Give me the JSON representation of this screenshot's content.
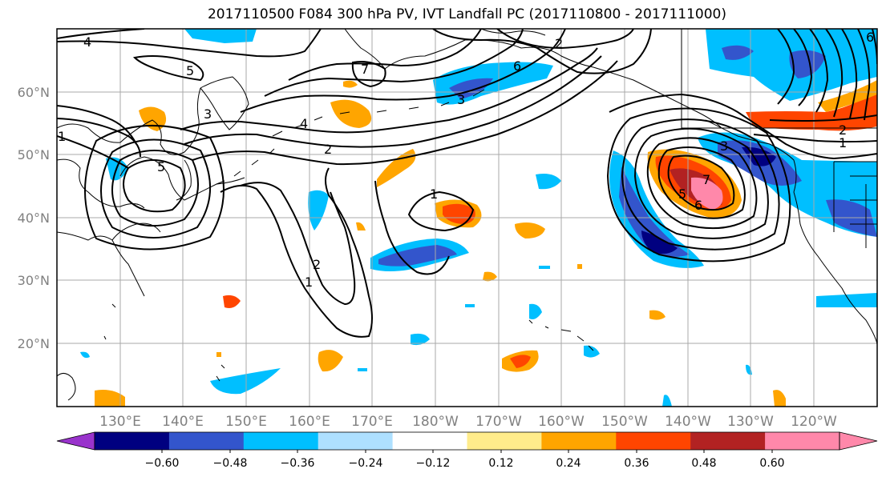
{
  "title": "2017110500 F084 300 hPa PV, IVT Landfall PC (2017110800 - 2017111000)",
  "map": {
    "lat_labels": [
      "60°N",
      "50°N",
      "40°N",
      "30°N",
      "20°N"
    ],
    "lon_labels": [
      "130°E",
      "140°E",
      "150°E",
      "160°E",
      "170°E",
      "180°W",
      "170°W",
      "160°W",
      "150°W",
      "140°W",
      "130°W",
      "120°W"
    ],
    "contour_labels": [
      "4",
      "5",
      "7",
      "6",
      "3",
      "4",
      "2",
      "3",
      "5",
      "2",
      "1",
      "1",
      "2",
      "1",
      "7",
      "6",
      "5",
      "3",
      "2",
      "1",
      "6"
    ]
  },
  "colorbar": {
    "colors": [
      "#9933cc",
      "#000080",
      "#3355cc",
      "#00bfff",
      "#aee0ff",
      "#ffffff",
      "#ffec8b",
      "#ffa500",
      "#ff4500",
      "#b22222",
      "#ff88aa",
      "#ff88aa"
    ],
    "tick_labels": [
      "−0.60",
      "−0.48",
      "−0.36",
      "−0.24",
      "−0.12",
      "0.12",
      "0.24",
      "0.36",
      "0.48",
      "0.60"
    ]
  }
}
